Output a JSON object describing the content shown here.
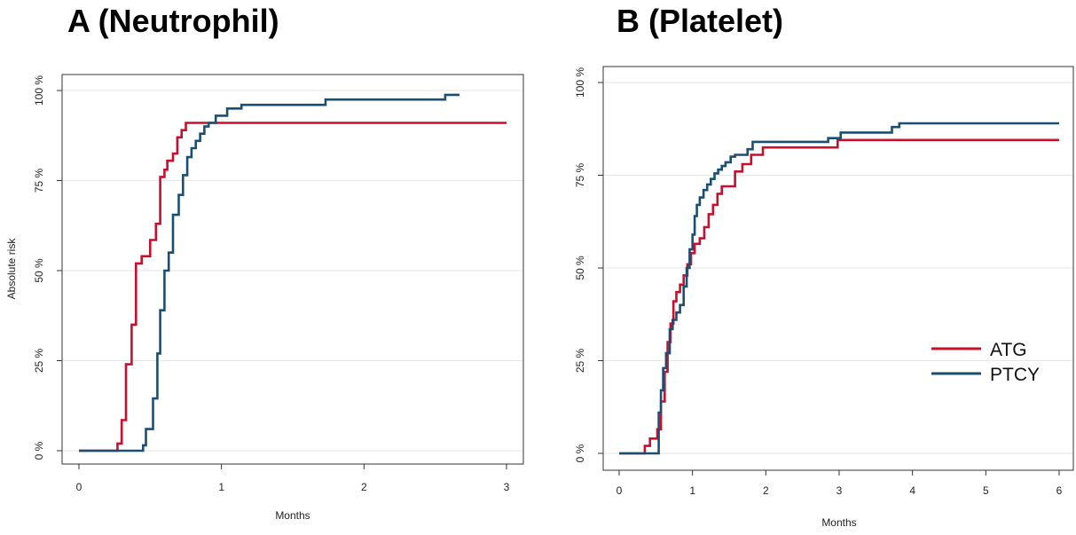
{
  "colors": {
    "ATG": "#c8102e",
    "PTCY": "#1b4f72",
    "grid": "#e6e6e6",
    "frame": "#333333"
  },
  "chart_data": [
    {
      "type": "line",
      "step": true,
      "title": "A (Neutrophil)",
      "xlabel": "Months",
      "ylabel": "Absolute risk",
      "xlim": [
        0,
        3
      ],
      "ylim": [
        0,
        100
      ],
      "xticks": [
        0,
        1,
        2,
        3
      ],
      "xtick_labels": [
        "0",
        "1",
        "2",
        "3"
      ],
      "yticks": [
        0,
        25,
        50,
        75,
        100
      ],
      "ytick_labels": [
        "0 %",
        "25 %",
        "50 %",
        "75 %",
        "100 %"
      ],
      "grid": true,
      "legend": false,
      "series": [
        {
          "name": "ATG",
          "x": [
            0,
            0.27,
            0.3,
            0.33,
            0.37,
            0.4,
            0.44,
            0.5,
            0.54,
            0.57,
            0.6,
            0.62,
            0.66,
            0.69,
            0.72,
            0.75,
            1.0,
            3.0
          ],
          "y": [
            0,
            2,
            8.5,
            24,
            35,
            52,
            54,
            58.5,
            63,
            76,
            78,
            80.5,
            82.5,
            87,
            89,
            91,
            91,
            91
          ]
        },
        {
          "name": "PTCY",
          "x": [
            0,
            0.45,
            0.47,
            0.52,
            0.55,
            0.57,
            0.6,
            0.63,
            0.66,
            0.7,
            0.73,
            0.76,
            0.79,
            0.82,
            0.85,
            0.88,
            0.91,
            0.96,
            1.04,
            1.14,
            1.73,
            2.57,
            2.67
          ],
          "y": [
            0,
            1.5,
            6,
            14.5,
            27,
            39,
            50,
            55,
            65.5,
            71,
            76.5,
            81.5,
            84,
            86,
            88,
            90,
            91,
            93,
            95,
            96,
            97.5,
            98.8,
            98.8
          ]
        }
      ]
    },
    {
      "type": "line",
      "step": true,
      "title": "B (Platelet)",
      "xlabel": "Months",
      "ylabel": "",
      "xlim": [
        0,
        6
      ],
      "ylim": [
        0,
        100
      ],
      "xticks": [
        0,
        1,
        2,
        3,
        4,
        5,
        6
      ],
      "xtick_labels": [
        "0",
        "1",
        "2",
        "3",
        "4",
        "5",
        "6"
      ],
      "yticks": [
        0,
        25,
        50,
        75,
        100
      ],
      "ytick_labels": [
        "0 %",
        "25 %",
        "50 %",
        "75 %",
        "100 %"
      ],
      "grid": true,
      "legend": true,
      "legend_position": "right",
      "series": [
        {
          "name": "ATG",
          "x": [
            0,
            0.35,
            0.42,
            0.52,
            0.57,
            0.62,
            0.66,
            0.7,
            0.74,
            0.78,
            0.83,
            0.88,
            0.93,
            0.98,
            1.03,
            1.1,
            1.16,
            1.22,
            1.28,
            1.34,
            1.4,
            1.58,
            1.68,
            1.8,
            1.96,
            2.98,
            3.0,
            6.0
          ],
          "y": [
            0,
            2,
            4,
            6.5,
            14,
            22,
            30,
            35,
            41,
            43.5,
            45.5,
            48,
            51,
            54,
            56.5,
            58,
            61,
            64.5,
            67,
            70,
            72,
            76,
            78,
            80.5,
            82.5,
            84.5,
            84.5,
            84.5
          ]
        },
        {
          "name": "PTCY",
          "x": [
            0,
            0.54,
            0.57,
            0.6,
            0.64,
            0.69,
            0.73,
            0.78,
            0.83,
            0.88,
            0.92,
            0.96,
            1.0,
            1.03,
            1.06,
            1.1,
            1.15,
            1.2,
            1.25,
            1.3,
            1.35,
            1.4,
            1.45,
            1.52,
            1.58,
            1.75,
            1.82,
            2.85,
            3.02,
            3.72,
            3.82,
            6.0
          ],
          "y": [
            0,
            11,
            17,
            23,
            27,
            33.5,
            36,
            38,
            40,
            45,
            50,
            55,
            59,
            64,
            67,
            69,
            71,
            72.5,
            74,
            75.5,
            76.5,
            77.5,
            78.5,
            80,
            80.5,
            82,
            84,
            85,
            86.5,
            88,
            89,
            89
          ]
        }
      ]
    }
  ]
}
